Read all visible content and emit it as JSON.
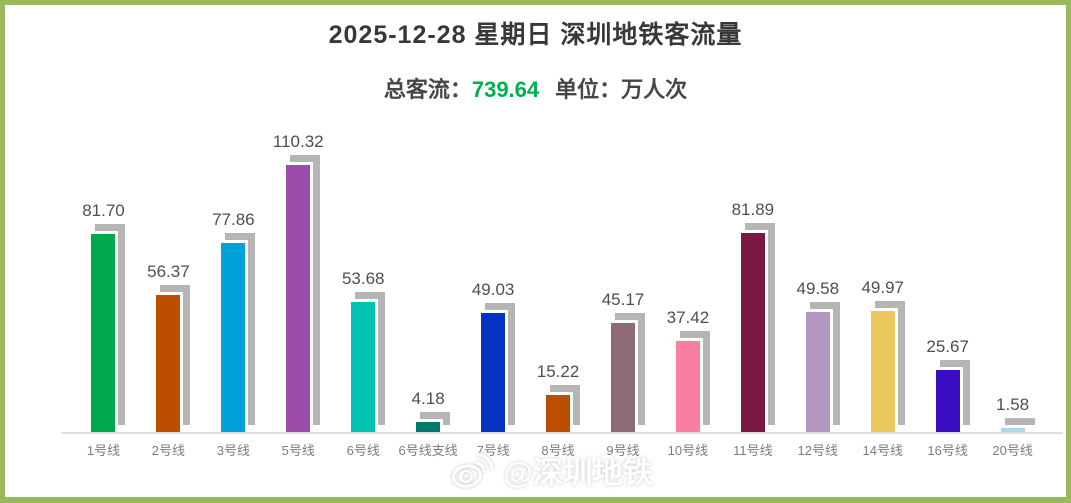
{
  "frame": {
    "border_color": "#9ab85c",
    "background": "#ffffff"
  },
  "header": {
    "title": "2025-12-28 星期日  深圳地铁客流量",
    "subtitle_prefix": "总客流：",
    "total_value": "739.64",
    "subtitle_suffix": "单位：万人次",
    "total_color": "#00b050"
  },
  "watermark": {
    "icon": "weibo-icon",
    "label": "@深圳地铁"
  },
  "chart_data": {
    "type": "bar",
    "title": "2025-12-28 星期日 深圳地铁客流量",
    "total": 739.64,
    "unit": "万人次",
    "categories": [
      "1号线",
      "2号线",
      "3号线",
      "5号线",
      "6号线",
      "6号线支线",
      "7号线",
      "8号线",
      "9号线",
      "10号线",
      "11号线",
      "12号线",
      "14号线",
      "16号线",
      "20号线"
    ],
    "values": [
      81.7,
      56.37,
      77.86,
      110.32,
      53.68,
      4.18,
      49.03,
      15.22,
      45.17,
      37.42,
      81.89,
      49.58,
      49.97,
      25.67,
      1.58
    ],
    "value_labels": [
      "81.70",
      "56.37",
      "77.86",
      "110.32",
      "53.68",
      "4.18",
      "49.03",
      "15.22",
      "45.17",
      "37.42",
      "81.89",
      "49.58",
      "49.97",
      "25.67",
      "1.58"
    ],
    "bar_colors": [
      "#00a94e",
      "#bc4e00",
      "#00a2da",
      "#9c4dab",
      "#00c2b1",
      "#00796f",
      "#0535c0",
      "#bc4e00",
      "#8c6b74",
      "#f87f9f",
      "#7a1843",
      "#b197bf",
      "#ecc75c",
      "#3b0ec3",
      "#a6d9e9"
    ],
    "shadow_color": "#b5b5b5",
    "axis_line_color": "#e9dade",
    "ylim": [
      0,
      123
    ],
    "grid": false,
    "legend": false,
    "value_labels_shown": true
  }
}
